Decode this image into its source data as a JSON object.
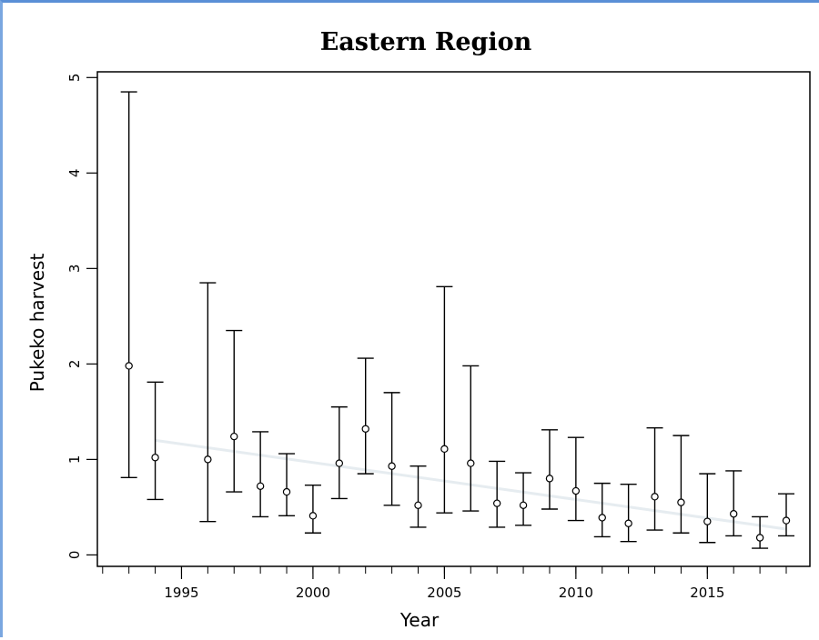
{
  "chart_data": {
    "type": "scatter",
    "title": "Eastern Region",
    "xlabel": "Year",
    "ylabel": "Pukeko harvest",
    "xlim": [
      1991.8,
      2018.9
    ],
    "ylim": [
      -0.12,
      5.06
    ],
    "xticks": [
      1995,
      2000,
      2005,
      2010,
      2015
    ],
    "yticks": [
      0,
      1,
      2,
      3,
      4,
      5
    ],
    "grid": false,
    "legend": "none",
    "error_bars": true,
    "trend": {
      "x": [
        1994,
        2018
      ],
      "y": [
        1.2,
        0.27
      ]
    },
    "series": [
      {
        "x": [
          1993,
          1994,
          1996,
          1997,
          1998,
          1999,
          2000,
          2001,
          2002,
          2003,
          2004,
          2005,
          2006,
          2007,
          2008,
          2009,
          2010,
          2011,
          2012,
          2013,
          2014,
          2015,
          2016,
          2017,
          2018
        ],
        "y": [
          1.98,
          1.02,
          1.0,
          1.24,
          0.72,
          0.66,
          0.41,
          0.96,
          1.32,
          0.93,
          0.52,
          1.11,
          0.96,
          0.54,
          0.52,
          0.8,
          0.67,
          0.39,
          0.33,
          0.61,
          0.55,
          0.35,
          0.43,
          0.18,
          0.36
        ],
        "lower": [
          0.81,
          0.58,
          0.35,
          0.66,
          0.4,
          0.41,
          0.23,
          0.59,
          0.85,
          0.52,
          0.29,
          0.44,
          0.46,
          0.29,
          0.31,
          0.48,
          0.36,
          0.19,
          0.14,
          0.26,
          0.23,
          0.13,
          0.2,
          0.07,
          0.2
        ],
        "upper": [
          4.85,
          1.81,
          2.85,
          2.35,
          1.29,
          1.06,
          0.73,
          1.55,
          2.06,
          1.7,
          0.93,
          2.81,
          1.98,
          0.98,
          0.86,
          1.31,
          1.23,
          0.75,
          0.74,
          1.33,
          1.25,
          0.85,
          0.88,
          0.4,
          0.64
        ]
      }
    ]
  }
}
